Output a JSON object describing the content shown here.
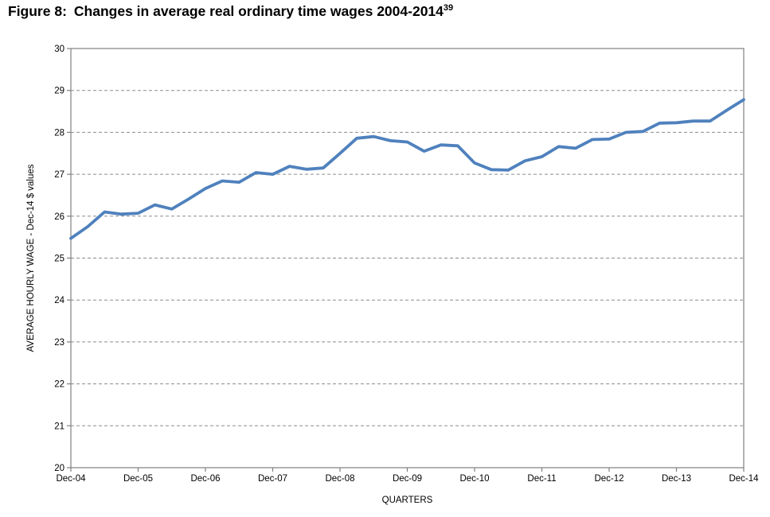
{
  "figure": {
    "label": "Figure 8:",
    "title": "Changes in average real ordinary time wages 2004-2014",
    "footnote_ref": "39"
  },
  "chart_data": {
    "type": "line",
    "title": "Figure 8: Changes in average real ordinary time wages 2004-2014",
    "xlabel": "QUARTERS",
    "ylabel": "AVERAGE HOURLY WAGE - Dec-14 $ values",
    "x_axis": {
      "tick_labels": [
        "Dec-04",
        "Dec-05",
        "Dec-06",
        "Dec-07",
        "Dec-08",
        "Dec-09",
        "Dec-10",
        "Dec-11",
        "Dec-12",
        "Dec-13",
        "Dec-14"
      ],
      "points_per_tick": 4,
      "frequency": "quarterly"
    },
    "y_axis": {
      "min": 20,
      "max": 30,
      "tick_step": 1,
      "tick_labels": [
        "20",
        "21",
        "22",
        "23",
        "24",
        "25",
        "26",
        "27",
        "28",
        "29",
        "30"
      ]
    },
    "grid": "horizontal-dashed",
    "legend": "none",
    "series": [
      {
        "color": "#4F81BD",
        "values": [
          25.47,
          25.75,
          26.1,
          26.05,
          26.07,
          26.27,
          26.17,
          26.41,
          26.66,
          26.84,
          26.81,
          27.04,
          27.0,
          27.19,
          27.12,
          27.15,
          27.5,
          27.86,
          27.9,
          27.8,
          27.77,
          27.55,
          27.7,
          27.68,
          27.27,
          27.11,
          27.1,
          27.32,
          27.42,
          27.66,
          27.62,
          27.83,
          27.84,
          28.0,
          28.02,
          28.22,
          28.23,
          28.27,
          28.27,
          28.53,
          28.78
        ]
      }
    ]
  },
  "colors": {
    "line": "#4F81BD",
    "gridline": "#8c8c8c",
    "axis": "#808080",
    "text": "#000000",
    "background": "#ffffff"
  }
}
